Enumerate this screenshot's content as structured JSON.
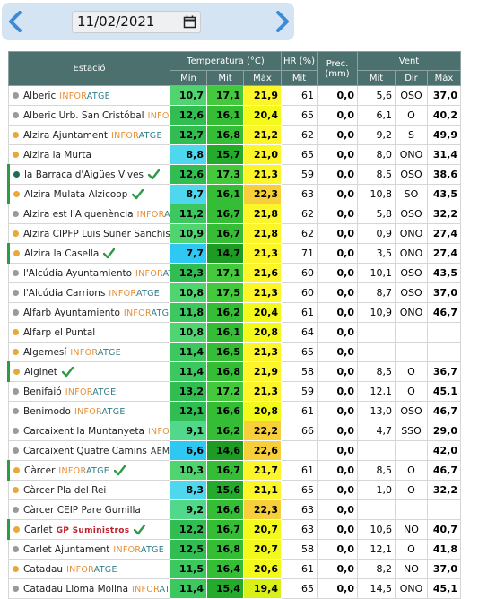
{
  "date": "11/02/2021",
  "table": {
    "header": {
      "station": "Estació",
      "groups": [
        "Temperatura (°C)",
        "HR (%)",
        "Prec. (mm)",
        "Vent"
      ],
      "sub": [
        "Mín",
        "Mit",
        "Màx",
        "Mit",
        "Mit",
        "Dir",
        "Màx"
      ]
    },
    "rows": [
      {
        "station": "Alberic",
        "tag": "INFORATGE",
        "check": false,
        "dot": "#9a9a9a",
        "values": [
          "10,7",
          "17,1",
          "21,9",
          "61",
          "0,0",
          "5,6",
          "OSO",
          "37,0"
        ]
      },
      {
        "station": "Alberic Urb. San Cristóbal",
        "tag": "INFORATGE",
        "check": false,
        "dot": "#9a9a9a",
        "values": [
          "12,6",
          "16,1",
          "20,4",
          "65",
          "0,0",
          "6,1",
          "O",
          "40,2"
        ]
      },
      {
        "station": "Alzira Ajuntament",
        "tag": "INFORATGE",
        "check": false,
        "dot": "#e8a83a",
        "values": [
          "12,7",
          "16,8",
          "21,2",
          "62",
          "0,0",
          "9,2",
          "S",
          "49,9"
        ]
      },
      {
        "station": "Alzira la Murta",
        "tag": null,
        "check": false,
        "dot": "#e8a83a",
        "values": [
          "8,8",
          "15,7",
          "21,0",
          "65",
          "0,0",
          "8,0",
          "ONO",
          "31,4"
        ]
      },
      {
        "station": "la Barraca d'Aigües Vives",
        "tag": null,
        "check": true,
        "dot": "#1e6b5a",
        "values": [
          "12,6",
          "17,3",
          "21,3",
          "59",
          "0,0",
          "8,5",
          "OSO",
          "38,6"
        ]
      },
      {
        "station": "Alzira Mulata Alzicoop",
        "tag": null,
        "check": true,
        "dot": "#e8a83a",
        "values": [
          "8,7",
          "16,1",
          "22,3",
          "63",
          "0,0",
          "10,8",
          "SO",
          "43,5"
        ]
      },
      {
        "station": "Alzira est l'Alquenència",
        "tag": "INFORATGE",
        "check": false,
        "dot": "#9a9a9a",
        "values": [
          "11,2",
          "16,7",
          "21,8",
          "62",
          "0,0",
          "5,8",
          "OSO",
          "32,2"
        ]
      },
      {
        "station": "Alzira CIPFP Luis Suñer Sanchis",
        "tag": null,
        "check": false,
        "dot": "#e8a83a",
        "values": [
          "10,9",
          "16,7",
          "21,8",
          "62",
          "0,0",
          "0,9",
          "ONO",
          "27,4"
        ]
      },
      {
        "station": "Alzira la Casella",
        "tag": null,
        "check": true,
        "dot": "#e8a83a",
        "values": [
          "7,7",
          "14,7",
          "21,3",
          "71",
          "0,0",
          "3,5",
          "ONO",
          "27,4"
        ]
      },
      {
        "station": "l'Alcúdia Ayuntamiento",
        "tag": "INFORATGE",
        "check": false,
        "dot": "#9a9a9a",
        "values": [
          "12,3",
          "17,1",
          "21,6",
          "60",
          "0,0",
          "10,1",
          "OSO",
          "43,5"
        ]
      },
      {
        "station": "l'Alcúdia Carrions",
        "tag": "INFORATGE",
        "check": false,
        "dot": "#9a9a9a",
        "values": [
          "10,8",
          "17,5",
          "21,3",
          "60",
          "0,0",
          "8,7",
          "OSO",
          "37,0"
        ]
      },
      {
        "station": "Alfarb Ayuntamiento",
        "tag": "INFORATGE",
        "check": false,
        "dot": "#9a9a9a",
        "values": [
          "11,8",
          "16,2",
          "20,4",
          "61",
          "0,0",
          "10,9",
          "ONO",
          "46,7"
        ]
      },
      {
        "station": "Alfarp el Puntal",
        "tag": null,
        "check": false,
        "dot": "#e8a83a",
        "values": [
          "10,8",
          "16,1",
          "20,8",
          "64",
          "0,0",
          null,
          null,
          null
        ]
      },
      {
        "station": "Algemesí",
        "tag": "INFORATGE",
        "check": false,
        "dot": "#e8a83a",
        "values": [
          "11,4",
          "16,5",
          "21,3",
          "65",
          "0,0",
          null,
          null,
          null
        ]
      },
      {
        "station": "Alginet",
        "tag": null,
        "check": true,
        "dot": "#e8a83a",
        "values": [
          "11,4",
          "16,8",
          "21,9",
          "58",
          "0,0",
          "8,5",
          "O",
          "36,7"
        ]
      },
      {
        "station": "Benifaió",
        "tag": "INFORATGE",
        "check": false,
        "dot": "#9a9a9a",
        "values": [
          "13,2",
          "17,2",
          "21,3",
          "59",
          "0,0",
          "12,1",
          "O",
          "45,1"
        ]
      },
      {
        "station": "Benimodo",
        "tag": "INFORATGE",
        "check": false,
        "dot": "#9a9a9a",
        "values": [
          "12,1",
          "16,6",
          "20,8",
          "61",
          "0,0",
          "13,0",
          "OSO",
          "46,7"
        ]
      },
      {
        "station": "Carcaixent la Muntanyeta",
        "tag": "INFORATGE",
        "check": false,
        "dot": "#9a9a9a",
        "values": [
          "9,1",
          "16,2",
          "22,2",
          "66",
          "0,0",
          "4,7",
          "SSO",
          "29,0"
        ]
      },
      {
        "station": "Carcaixent Quatre Camins",
        "tag": "AEMET",
        "check": false,
        "dot": "#9a9a9a",
        "values": [
          "6,6",
          "14,6",
          "22,6",
          null,
          "0,0",
          null,
          null,
          "42,0"
        ]
      },
      {
        "station": "Càrcer",
        "tag": "INFORATGE",
        "check": true,
        "dot": "#e8a83a",
        "values": [
          "10,3",
          "16,7",
          "21,7",
          "61",
          "0,0",
          "8,5",
          "O",
          "46,7"
        ]
      },
      {
        "station": "Càrcer Pla del Rei",
        "tag": null,
        "check": false,
        "dot": "#e8a83a",
        "values": [
          "8,3",
          "15,6",
          "21,1",
          "65",
          "0,0",
          "1,0",
          "O",
          "32,2"
        ]
      },
      {
        "station": "Càrcer CEIP Pare Gumilla",
        "tag": null,
        "check": false,
        "dot": "#9a9a9a",
        "values": [
          "9,2",
          "16,6",
          "22,3",
          "63",
          "0,0",
          null,
          null,
          null
        ]
      },
      {
        "station": "Carlet",
        "tag": "GP Suministros",
        "check": true,
        "dot": "#e8a83a",
        "values": [
          "12,2",
          "16,7",
          "20,7",
          "63",
          "0,0",
          "10,6",
          "NO",
          "40,7"
        ]
      },
      {
        "station": "Carlet Ajuntament",
        "tag": "INFORATGE",
        "check": false,
        "dot": "#9a9a9a",
        "values": [
          "12,5",
          "16,8",
          "20,7",
          "58",
          "0,0",
          "12,1",
          "O",
          "41,8"
        ]
      },
      {
        "station": "Catadau",
        "tag": "INFORATGE",
        "check": false,
        "dot": "#e8a83a",
        "values": [
          "11,5",
          "16,4",
          "20,6",
          "61",
          "0,0",
          "8,2",
          "NO",
          "37,0"
        ]
      },
      {
        "station": "Catadau Lloma Molina",
        "tag": "INFORATGE",
        "check": false,
        "dot": "#9a9a9a",
        "values": [
          "11,4",
          "15,4",
          "19,4",
          "65",
          "0,0",
          "14,5",
          "ONO",
          "45,1"
        ]
      }
    ]
  }
}
